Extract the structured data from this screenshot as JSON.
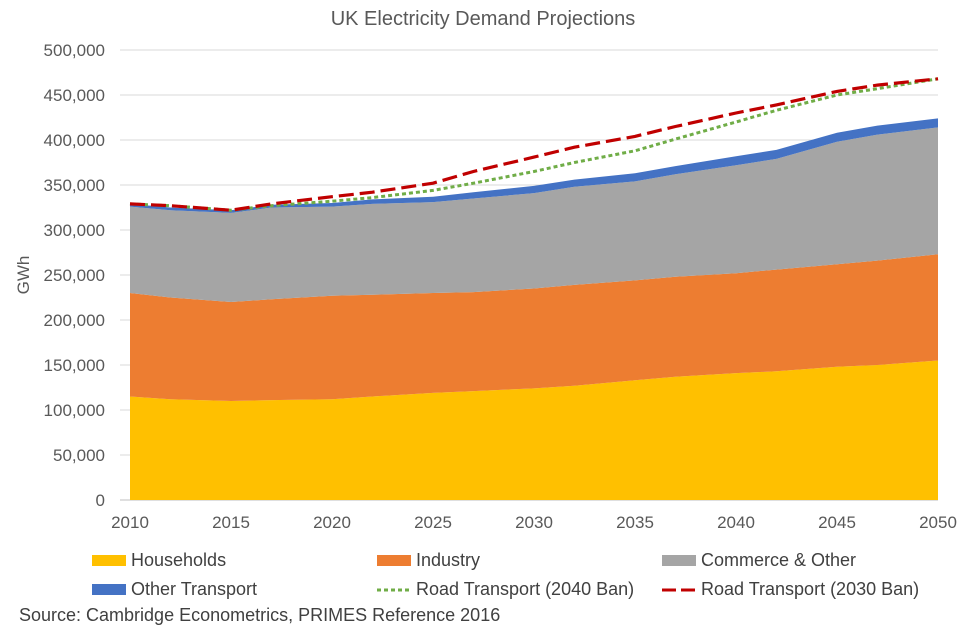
{
  "chart_data": {
    "type": "area",
    "title": "UK Electricity Demand Projections",
    "xlabel": "",
    "ylabel": "GWh",
    "x": [
      2010,
      2012,
      2015,
      2017,
      2020,
      2022,
      2025,
      2027,
      2030,
      2032,
      2035,
      2037,
      2040,
      2042,
      2045,
      2047,
      2050
    ],
    "xlim": [
      2010,
      2050
    ],
    "ylim": [
      0,
      500000
    ],
    "x_ticks": [
      "2010",
      "2015",
      "2020",
      "2025",
      "2030",
      "2035",
      "2040",
      "2045",
      "2050"
    ],
    "y_ticks": [
      "0",
      "50,000",
      "100,000",
      "150,000",
      "200,000",
      "250,000",
      "300,000",
      "350,000",
      "400,000",
      "450,000",
      "500,000"
    ],
    "grid": "horizontal",
    "legend_position": "bottom",
    "stacked_series": [
      {
        "name": "Households",
        "color": "#FFC000",
        "values": [
          115000,
          112000,
          110000,
          111000,
          112000,
          115000,
          119000,
          121000,
          124000,
          127000,
          133000,
          137000,
          141000,
          143000,
          148000,
          150000,
          155000
        ]
      },
      {
        "name": "Industry",
        "color": "#ED7D31",
        "values": [
          115000,
          113000,
          110000,
          112000,
          115000,
          113000,
          111000,
          110000,
          111000,
          112000,
          111000,
          111000,
          111000,
          113000,
          114000,
          116000,
          118000
        ]
      },
      {
        "name": "Commerce & Other",
        "color": "#A5A5A5",
        "values": [
          96000,
          97000,
          99000,
          102000,
          99000,
          101000,
          101000,
          104000,
          106000,
          109000,
          110000,
          114000,
          120000,
          123000,
          136000,
          140000,
          141000
        ]
      },
      {
        "name": "Other Transport",
        "color": "#4472C4",
        "values": [
          3000,
          3000,
          3000,
          3000,
          4000,
          5000,
          6000,
          7000,
          8000,
          8000,
          9000,
          9000,
          10000,
          10000,
          10000,
          10000,
          10000
        ]
      }
    ],
    "line_series": [
      {
        "name": "Road Transport (2040 Ban)",
        "color": "#70AD47",
        "dash": "dotted",
        "values": [
          329000,
          327000,
          322000,
          327000,
          332000,
          336000,
          344000,
          352000,
          365000,
          375000,
          388000,
          401000,
          420000,
          433000,
          450000,
          457000,
          468000
        ]
      },
      {
        "name": "Road Transport (2030 Ban)",
        "color": "#C00000",
        "dash": "dashed",
        "values": [
          329000,
          327000,
          322000,
          329000,
          337000,
          342000,
          352000,
          365000,
          381000,
          392000,
          404000,
          415000,
          430000,
          439000,
          454000,
          461000,
          468000
        ]
      }
    ],
    "source": "Source: Cambridge Econometrics, PRIMES Reference 2016"
  }
}
